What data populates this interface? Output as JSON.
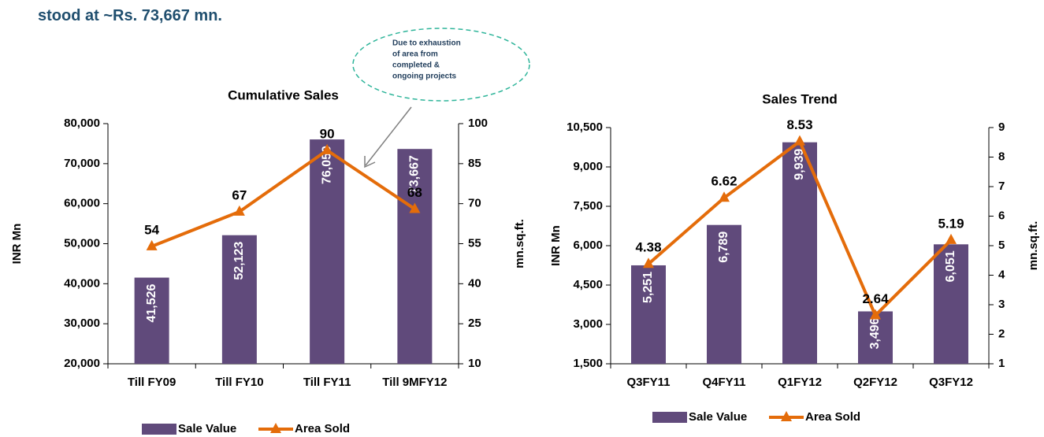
{
  "header": {
    "text": "stood at ~Rs. 73,667 mn."
  },
  "annotation": {
    "lines": [
      "Due to exhaustion",
      "of area from",
      "completed &",
      "ongoing projects"
    ]
  },
  "chart_data": [
    {
      "type": "bar_line",
      "title": "Cumulative Sales",
      "y_label": "INR Mn",
      "y2_label": "mn.sq.ft.",
      "categories": [
        "Till FY09",
        "Till FY10",
        "Till FY11",
        "Till 9MFY12"
      ],
      "series": [
        {
          "name": "Sale Value",
          "color": "#604a7b",
          "values": [
            41526,
            52123,
            76050,
            73667
          ],
          "value_labels": [
            "41,526",
            "52,123",
            "76,050",
            "73,667"
          ]
        },
        {
          "name": "Area Sold",
          "color": "#e46c0a",
          "axis": "y2",
          "values": [
            54,
            67,
            90,
            68
          ]
        }
      ],
      "ylim": [
        20000,
        80000
      ],
      "yticks": [
        {
          "value": 20000,
          "label": "20,000"
        },
        {
          "value": 30000,
          "label": "30,000"
        },
        {
          "value": 40000,
          "label": "40,000"
        },
        {
          "value": 50000,
          "label": "50,000"
        },
        {
          "value": 60000,
          "label": "60,000"
        },
        {
          "value": 70000,
          "label": "70,000"
        },
        {
          "value": 80000,
          "label": "80,000"
        }
      ],
      "y2lim": [
        10,
        100
      ],
      "y2ticks": [
        10,
        25,
        40,
        55,
        70,
        85,
        100
      ],
      "legend": "bottom"
    },
    {
      "type": "bar_line",
      "title": "Sales Trend",
      "y_label": "INR Mn",
      "y2_label": "mn.sq.ft.",
      "categories": [
        "Q3FY11",
        "Q4FY11",
        "Q1FY12",
        "Q2FY12",
        "Q3FY12"
      ],
      "series": [
        {
          "name": "Sale Value",
          "color": "#604a7b",
          "values": [
            5251,
            6789,
            9939,
            3496,
            6051
          ],
          "value_labels": [
            "5,251",
            "6,789",
            "9,939",
            "3,496",
            "6,051"
          ]
        },
        {
          "name": "Area Sold",
          "color": "#e46c0a",
          "axis": "y2",
          "values": [
            4.38,
            6.62,
            8.53,
            2.64,
            5.19
          ]
        }
      ],
      "ylim": [
        1500,
        10500
      ],
      "yticks": [
        {
          "value": 1500,
          "label": "1,500"
        },
        {
          "value": 3000,
          "label": "3,000"
        },
        {
          "value": 4500,
          "label": "4,500"
        },
        {
          "value": 6000,
          "label": "6,000"
        },
        {
          "value": 7500,
          "label": "7,500"
        },
        {
          "value": 9000,
          "label": "9,000"
        },
        {
          "value": 10500,
          "label": "10,500"
        }
      ],
      "y2lim": [
        1,
        9
      ],
      "y2ticks": [
        1,
        2,
        3,
        4,
        5,
        6,
        7,
        8,
        9
      ],
      "legend": "bottom"
    }
  ]
}
